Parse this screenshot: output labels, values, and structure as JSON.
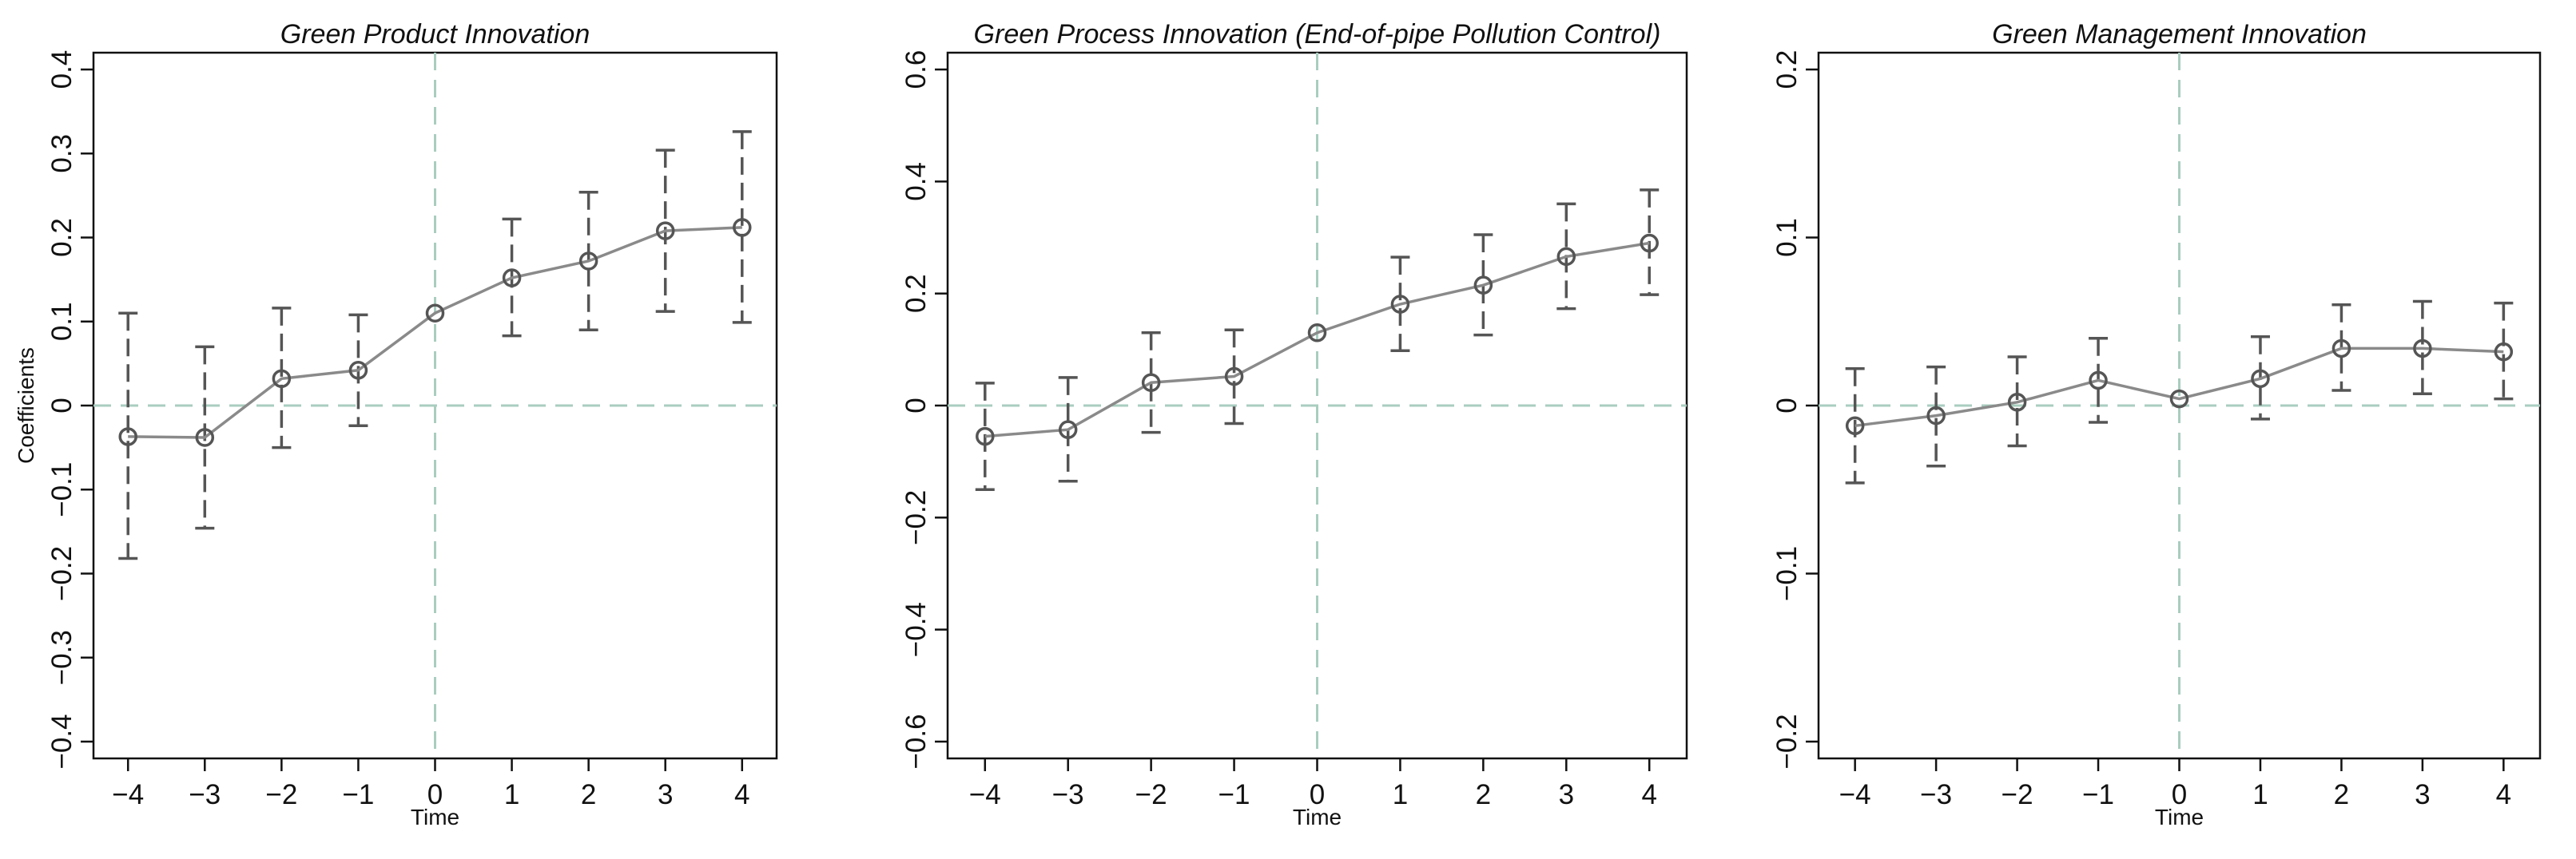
{
  "chart_data": [
    {
      "type": "line",
      "title": "Green Product Innovation",
      "xlabel": "Time",
      "ylabel": "Coefficients",
      "x": [
        -4,
        -3,
        -2,
        -1,
        0,
        1,
        2,
        3,
        4
      ],
      "x_tick_labels": [
        "−4",
        "−3",
        "−2",
        "−1",
        "0",
        "1",
        "2",
        "3",
        "4"
      ],
      "xlim": [
        -4.45,
        4.45
      ],
      "ylim": [
        -0.42,
        0.42
      ],
      "y_ticks": [
        -0.4,
        -0.3,
        -0.2,
        -0.1,
        0,
        0.1,
        0.2,
        0.3,
        0.4
      ],
      "y_tick_labels": [
        "−0.4",
        "−0.3",
        "−0.2",
        "−0.1",
        "0",
        "0.1",
        "0.2",
        "0.3",
        "0.4"
      ],
      "values": [
        -0.037,
        -0.038,
        0.032,
        0.042,
        0.11,
        0.152,
        0.172,
        0.208,
        0.212
      ],
      "ci_lower": [
        -0.182,
        -0.146,
        -0.05,
        -0.024,
        0.11,
        0.083,
        0.09,
        0.112,
        0.099
      ],
      "ci_upper": [
        0.11,
        0.07,
        0.116,
        0.108,
        0.11,
        0.222,
        0.254,
        0.304,
        0.326
      ],
      "reference_lines": {
        "x": 0,
        "y": 0
      },
      "grid": false
    },
    {
      "type": "line",
      "title": "Green Process Innovation (End-of-pipe Pollution Control)",
      "xlabel": "Time",
      "ylabel": "",
      "x": [
        -4,
        -3,
        -2,
        -1,
        0,
        1,
        2,
        3,
        4
      ],
      "x_tick_labels": [
        "−4",
        "−3",
        "−2",
        "−1",
        "0",
        "1",
        "2",
        "3",
        "4"
      ],
      "xlim": [
        -4.45,
        4.45
      ],
      "ylim": [
        -0.63,
        0.63
      ],
      "y_ticks": [
        -0.6,
        -0.4,
        -0.2,
        0,
        0.2,
        0.4,
        0.6
      ],
      "y_tick_labels": [
        "−0.6",
        "−0.4",
        "−0.2",
        "0",
        "0.2",
        "0.4",
        "0.6"
      ],
      "values": [
        -0.055,
        -0.043,
        0.041,
        0.052,
        0.13,
        0.181,
        0.215,
        0.266,
        0.29
      ],
      "ci_lower": [
        -0.15,
        -0.135,
        -0.048,
        -0.032,
        0.13,
        0.098,
        0.126,
        0.173,
        0.198
      ],
      "ci_upper": [
        0.04,
        0.05,
        0.13,
        0.135,
        0.13,
        0.265,
        0.305,
        0.36,
        0.385
      ],
      "reference_lines": {
        "x": 0,
        "y": 0
      },
      "grid": false
    },
    {
      "type": "line",
      "title": "Green Management Innovation",
      "xlabel": "Time",
      "ylabel": "",
      "x": [
        -4,
        -3,
        -2,
        -1,
        0,
        1,
        2,
        3,
        4
      ],
      "x_tick_labels": [
        "−4",
        "−3",
        "−2",
        "−1",
        "0",
        "1",
        "2",
        "3",
        "4"
      ],
      "xlim": [
        -4.45,
        4.45
      ],
      "ylim": [
        -0.21,
        0.21
      ],
      "y_ticks": [
        -0.2,
        -0.1,
        0,
        0.1,
        0.2
      ],
      "y_tick_labels": [
        "−0.2",
        "−0.1",
        "0",
        "0.1",
        "0.2"
      ],
      "values": [
        -0.012,
        -0.006,
        0.002,
        0.015,
        0.004,
        0.016,
        0.034,
        0.034,
        0.032
      ],
      "ci_lower": [
        -0.046,
        -0.036,
        -0.024,
        -0.01,
        0.004,
        -0.008,
        0.009,
        0.007,
        0.004
      ],
      "ci_upper": [
        0.022,
        0.023,
        0.029,
        0.04,
        0.004,
        0.041,
        0.06,
        0.062,
        0.061
      ],
      "reference_lines": {
        "x": 0,
        "y": 0
      },
      "grid": false
    }
  ]
}
